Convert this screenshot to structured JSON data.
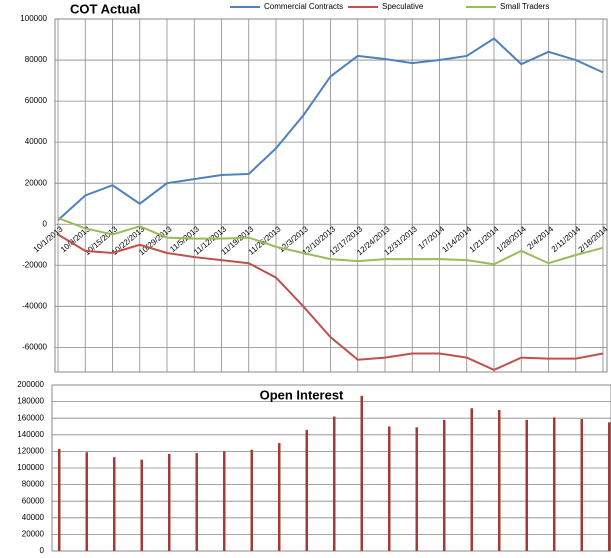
{
  "chart_data": [
    {
      "type": "line",
      "title": "COT Actual",
      "categories": [
        "10/1/2013",
        "10/8/2013",
        "10/15/2013",
        "10/22/2013",
        "10/29/2013",
        "11/5/2013",
        "11/12/2013",
        "11/19/2013",
        "11/26/2013",
        "12/3/2013",
        "12/10/2013",
        "12/17/2013",
        "12/24/2013",
        "12/31/2013",
        "1/7/2014",
        "1/14/2014",
        "1/21/2014",
        "1/28/2014",
        "2/4/2014",
        "2/11/2014",
        "2/18/2014"
      ],
      "series": [
        {
          "name": "Commercial Contracts",
          "color": "#4f81bd",
          "values": [
            2000,
            14000,
            19000,
            10000,
            20000,
            22000,
            24000,
            24500,
            37000,
            53000,
            72000,
            82000,
            80500,
            78500,
            80000,
            82000,
            90500,
            78000,
            84000,
            80000,
            74000
          ]
        },
        {
          "name": "Speculative",
          "color": "#c0504d",
          "values": [
            -5000,
            -13000,
            -14000,
            -10000,
            -14000,
            -16000,
            -17500,
            -19000,
            -26000,
            -40000,
            -55000,
            -66000,
            -65000,
            -63000,
            -63000,
            -65000,
            -71000,
            -65000,
            -65500,
            -65500,
            -63000
          ]
        },
        {
          "name": "Small Traders",
          "color": "#9bbb59",
          "values": [
            3000,
            -2000,
            -5000,
            -1000,
            -6500,
            -7000,
            -7000,
            -6500,
            -11000,
            -14000,
            -17000,
            -18000,
            -17000,
            -17000,
            -17000,
            -17500,
            -19500,
            -13000,
            -19000,
            -15000,
            -11500
          ]
        }
      ],
      "ylim": [
        -72000,
        100000
      ],
      "yticks": [
        -60000,
        -40000,
        -20000,
        0,
        20000,
        40000,
        60000,
        80000,
        100000
      ],
      "grid": true,
      "legend": "top"
    },
    {
      "type": "bar",
      "title": "Open Interest",
      "color": "#a33a37",
      "values": [
        123000,
        119000,
        113000,
        110000,
        117000,
        118000,
        120000,
        122000,
        130000,
        146000,
        162000,
        187000,
        150000,
        149000,
        158000,
        172000,
        170000,
        158000,
        161000,
        159000,
        155000
      ],
      "ylim": [
        0,
        200000
      ],
      "yticks": [
        0,
        20000,
        40000,
        60000,
        80000,
        100000,
        120000,
        140000,
        160000,
        180000,
        200000
      ],
      "grid": true
    }
  ]
}
